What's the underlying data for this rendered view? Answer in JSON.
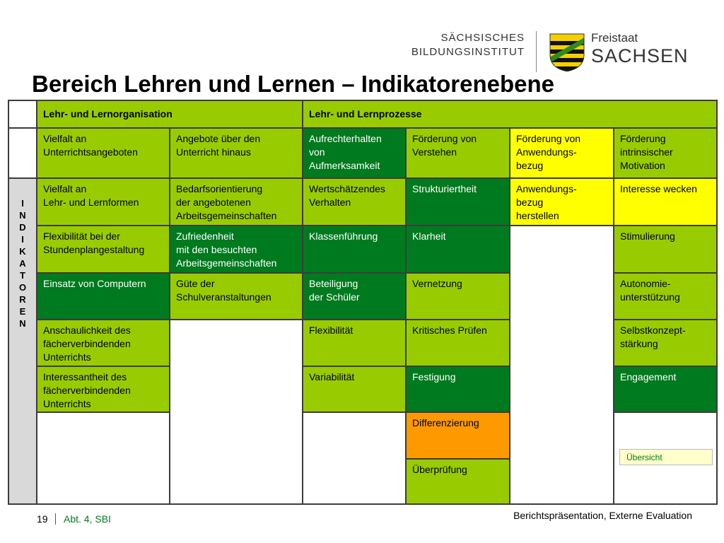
{
  "logo": {
    "institute": [
      "SÄCHSISCHES",
      "BILDUNGSINSTITUT"
    ],
    "state": [
      "Freistaat",
      "SACHSEN"
    ]
  },
  "title": "Bereich Lehren und Lernen – Indikatorenebene",
  "table": {
    "header": [
      "Lehr- und Lernorganisation",
      "Lehr- und Lernprozesse"
    ],
    "goals": [
      "Vielfalt an\nUnterrichtsangeboten",
      "Angebote über den\nUnterricht hinaus",
      "Aufrechterhalten\nvon\nAufmerksamkeit",
      "Förderung von\nVerstehen",
      "Förderung von\nAnwendungs-\nbezug",
      "Förderung\nintrinsischer\nMotivation"
    ],
    "side_label": "INDIKATOREN",
    "indicators": [
      [
        "Vielfalt an\nLehr- und Lernformen",
        "Flexibilität bei der\nStundenplangestaltung",
        "Einsatz von Computern",
        "Anschaulichkeit des\nfächerverbindenden\nUnterrichts",
        "Interessantheit des\nfächerverbindenden\nUnterrichts"
      ],
      [
        "Bedarfsorientierung\nder angebotenen\nArbeitsgemeinschaften",
        "Zufriedenheit\nmit den besuchten\nArbeitsgemeinschaften",
        "Güte der\nSchulveranstaltungen"
      ],
      [
        "Wertschätzendes\nVerhalten",
        "Klassenführung",
        "Beteiligung\nder Schüler",
        "Flexibilität",
        "Variabilität"
      ],
      [
        "Strukturiertheit",
        "Klarheit",
        "Vernetzung",
        "Kritisches Prüfen",
        "Festigung",
        "Differenzierung",
        "Überprüfung"
      ],
      [
        "Anwendungs-\nbezug\nherstellen"
      ],
      [
        "Interesse wecken",
        "Stimulierung",
        "Autonomie-\nunterstützung",
        "Selbstkonzept-\nstärkung",
        "Engagement"
      ]
    ]
  },
  "button": "Übersicht",
  "footer": {
    "page": "19",
    "department": "Abt. 4, SBI",
    "caption": "Berichtspräsentation, Externe Evaluation"
  }
}
